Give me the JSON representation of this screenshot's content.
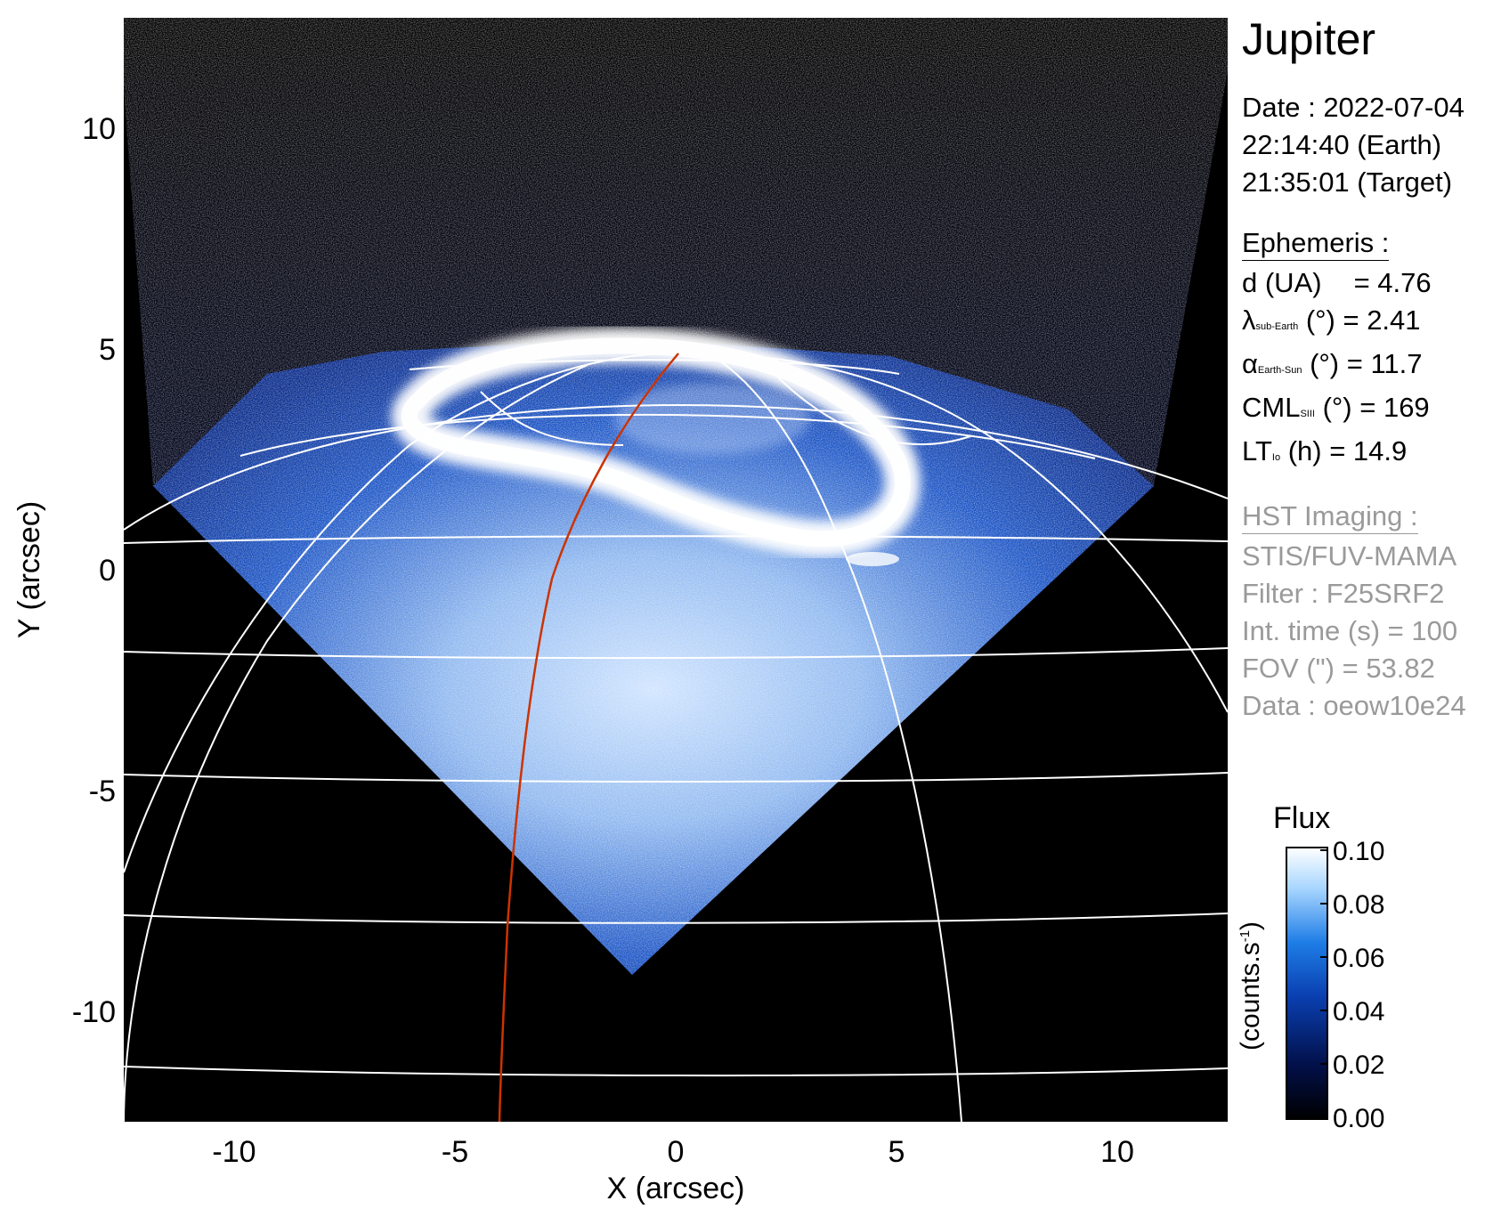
{
  "figure": {
    "xlabel": "X (arcsec)",
    "ylabel": "Y (arcsec)",
    "xticks": [
      "-10",
      "-5",
      "0",
      "5",
      "10"
    ],
    "yticks": [
      "10",
      "5",
      "0",
      "-5",
      "-10"
    ],
    "xlim": [
      -12.5,
      12.5
    ],
    "ylim": [
      -12.5,
      12.5
    ],
    "colors": {
      "background": "#000000",
      "grid": "#ffffff",
      "meridian": "#cc3300",
      "emission": "#0a3fb0",
      "aurora": "#ffffff"
    }
  },
  "info": {
    "planet": "Jupiter",
    "date_line": "Date : 2022-07-04",
    "time_earth": "22:14:40 (Earth)",
    "time_target": "21:35:01 (Target)",
    "ephemeris_title": "Ephemeris :",
    "eph": {
      "d_label": "d (UA)",
      "d_value": "= 4.76",
      "lat_sym": "λ",
      "lat_sub": "sub-Earth",
      "lat_rest": " (°) = 2.41",
      "phase_sym": "α",
      "phase_sub": "Earth-Sun",
      "phase_rest": " (°) = 11.7",
      "cml_sym": "CML",
      "cml_sub": "SIII",
      "cml_rest": " (°) = 169",
      "lt_sym": "LT",
      "lt_sub": "Io",
      "lt_rest": " (h) = 14.9"
    },
    "hst_title": "HST Imaging :",
    "instrument": "STIS/FUV-MAMA",
    "filter": "Filter : F25SRF2",
    "int_time": "Int. time (s) = 100",
    "fov": "FOV (\") = 53.82",
    "dataset": "Data : oeow10e24"
  },
  "colorbar": {
    "title": "Flux",
    "unit_text": "(counts.s",
    "unit_sup": "-1",
    "unit_close": ")",
    "ticks": [
      "0.10",
      "0.08",
      "0.06",
      "0.04",
      "0.02",
      "0.00"
    ],
    "colors": [
      "#000000",
      "#02104a",
      "#0a3fb0",
      "#1e7de6",
      "#a8d6ff",
      "#ffffff"
    ]
  }
}
